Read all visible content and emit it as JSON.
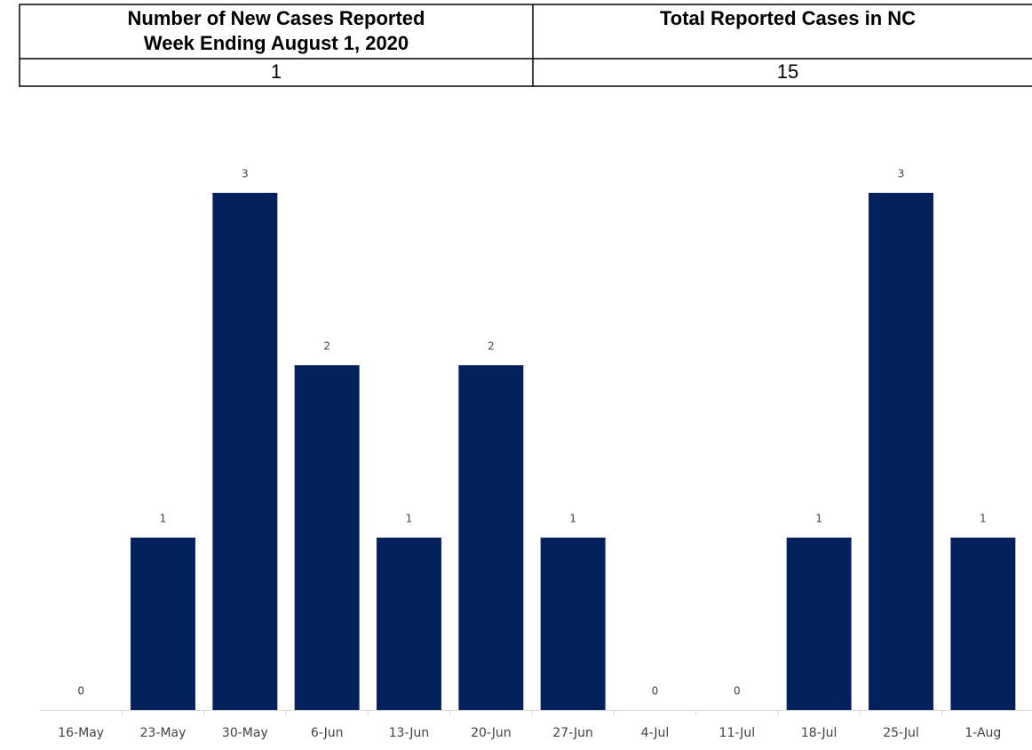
{
  "table": {
    "header": [
      [
        "Number of New Cases Reported",
        "Week Ending August 1, 2020"
      ],
      [
        "Total Reported Cases in NC"
      ]
    ],
    "rows": [
      [
        1,
        15
      ]
    ]
  },
  "chart_data": {
    "type": "bar",
    "categories": [
      "16-May",
      "23-May",
      "30-May",
      "6-Jun",
      "13-Jun",
      "20-Jun",
      "27-Jun",
      "4-Jul",
      "11-Jul",
      "18-Jul",
      "25-Jul",
      "1-Aug"
    ],
    "values": [
      0,
      1,
      3,
      2,
      1,
      2,
      1,
      0,
      0,
      1,
      3,
      1
    ],
    "color": "#03215b",
    "ylim": [
      0,
      3.5
    ]
  }
}
